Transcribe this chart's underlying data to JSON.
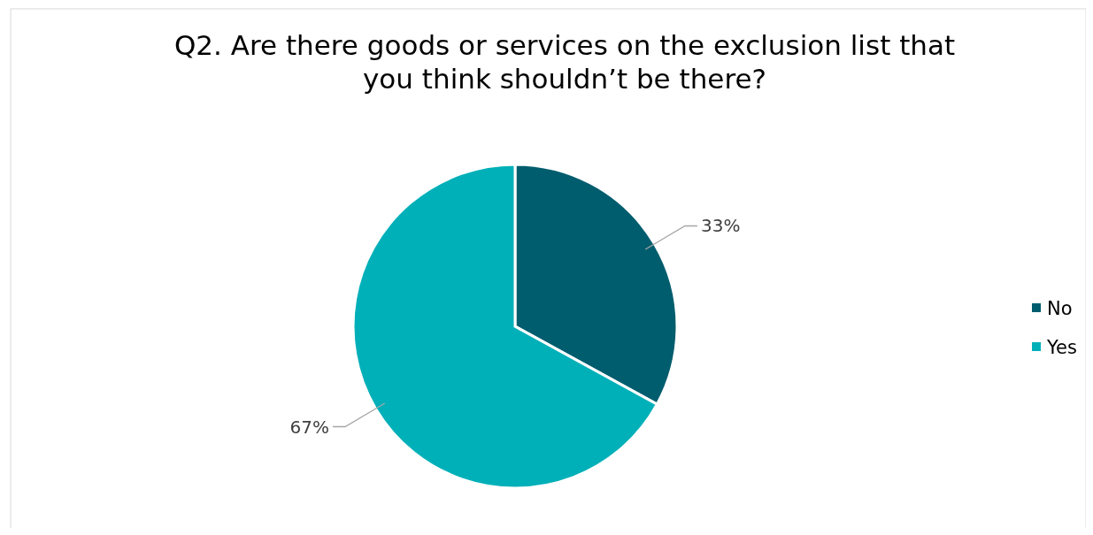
{
  "chart_data": {
    "type": "pie",
    "title": "Q2. Are there goods or services on the exclusion list that you think shouldn’t be there?",
    "categories": [
      "No",
      "Yes"
    ],
    "values": [
      33,
      67
    ],
    "colors": [
      "#005d6e",
      "#00b0b9"
    ],
    "value_labels": [
      "33%",
      "67%"
    ],
    "legend": "right"
  }
}
